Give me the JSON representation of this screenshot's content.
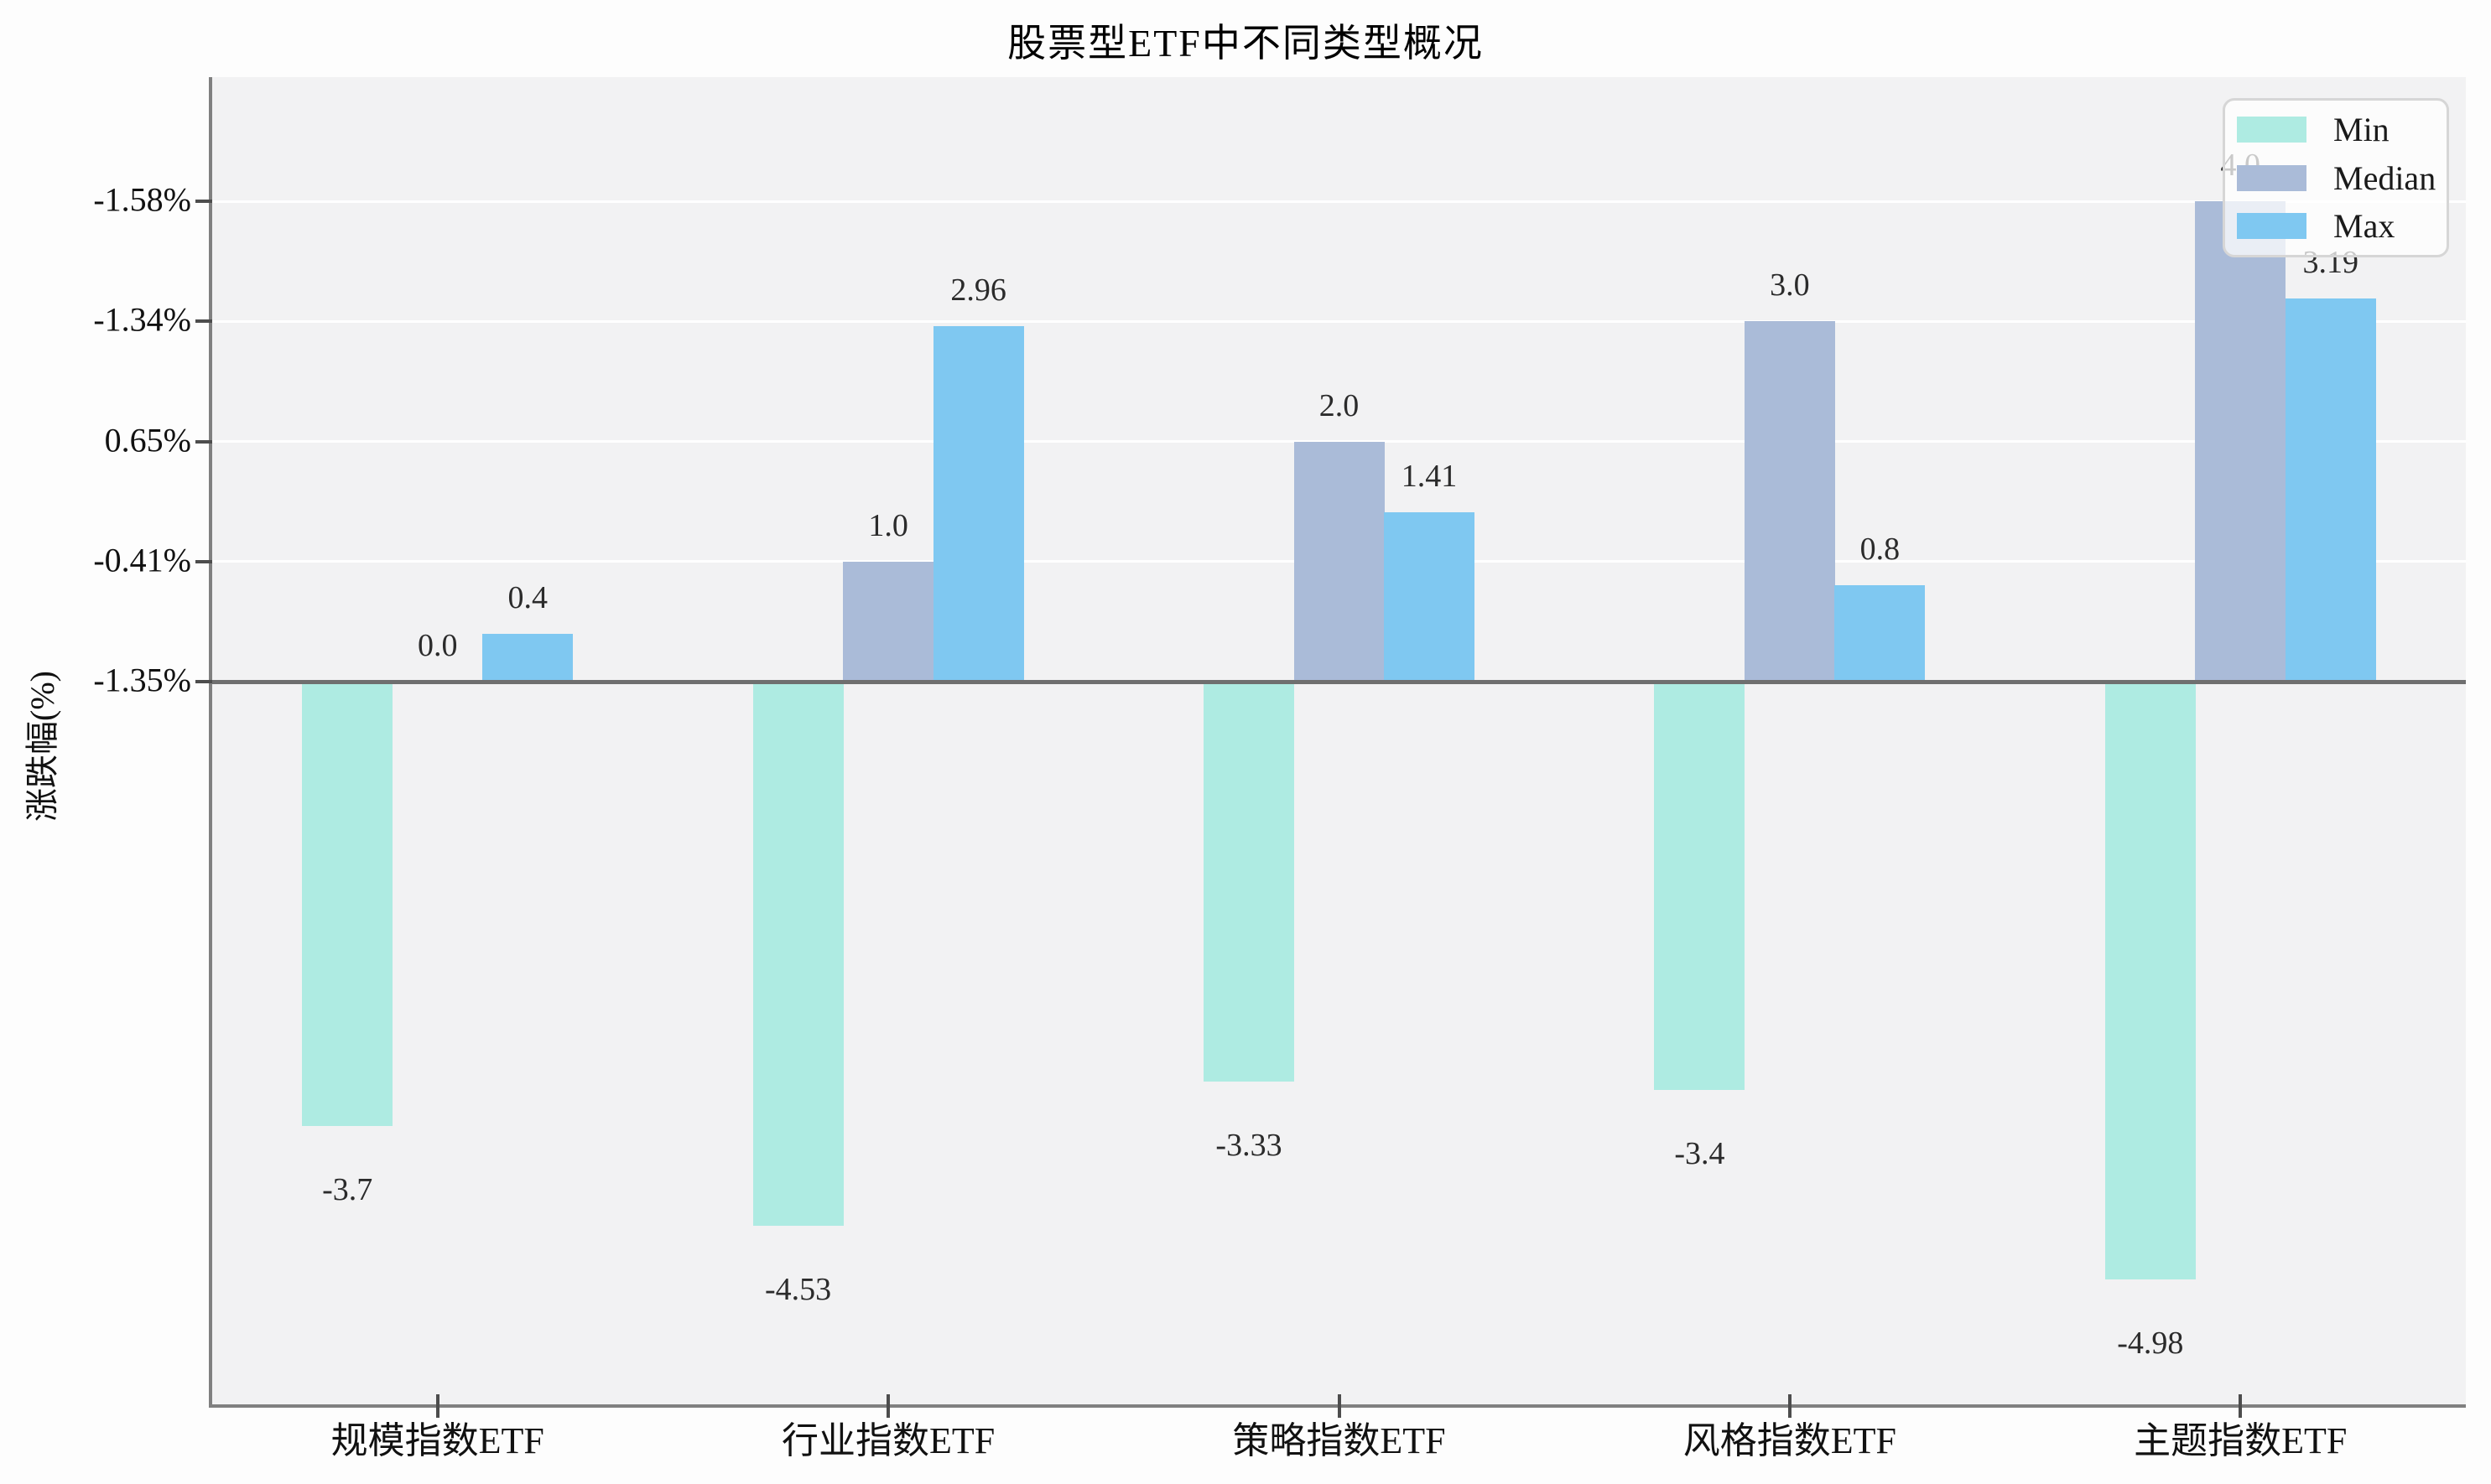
{
  "chart_data": {
    "type": "bar",
    "title": "股票型ETF中不同类型概况",
    "ylabel": "涨跌幅(%)",
    "categories": [
      "规模指数ETF",
      "行业指数ETF",
      "策略指数ETF",
      "风格指数ETF",
      "主题指数ETF"
    ],
    "series": [
      {
        "name": "Min",
        "color": "#aeebe2",
        "values": [
          -3.7,
          -4.53,
          -3.33,
          -3.4,
          -4.98
        ],
        "labels": [
          "-3.7",
          "-4.53",
          "-3.33",
          "-3.4",
          "-4.98"
        ]
      },
      {
        "name": "Median",
        "color": "#aabbd8",
        "values": [
          0.0,
          1.0,
          2.0,
          3.0,
          4.0
        ],
        "labels": [
          "0.0",
          "1.0",
          "2.0",
          "3.0",
          "4.0"
        ]
      },
      {
        "name": "Max",
        "color": "#7fc8f1",
        "values": [
          0.4,
          2.96,
          1.41,
          0.8,
          3.19
        ],
        "labels": [
          "0.4",
          "2.96",
          "1.41",
          "0.8",
          "3.19"
        ]
      }
    ],
    "y_tick_labels": [
      "-1.58%",
      "-1.34%",
      "0.65%",
      "-0.41%",
      "-1.35%"
    ],
    "legend": {
      "position": "upper right",
      "entries": [
        "Min",
        "Median",
        "Max"
      ]
    },
    "grid": "horizontal white gridlines at tick rows only, plot background light gray",
    "axis_note": "zero baseline dark gray line across plot; tick labels are percentages shown top to bottom",
    "colors": {
      "plot_background": "#f2f2f3",
      "gridline": "#ffffff",
      "spine": "#808080",
      "zero_line": "#6f6f6f",
      "text": "#111111"
    }
  }
}
